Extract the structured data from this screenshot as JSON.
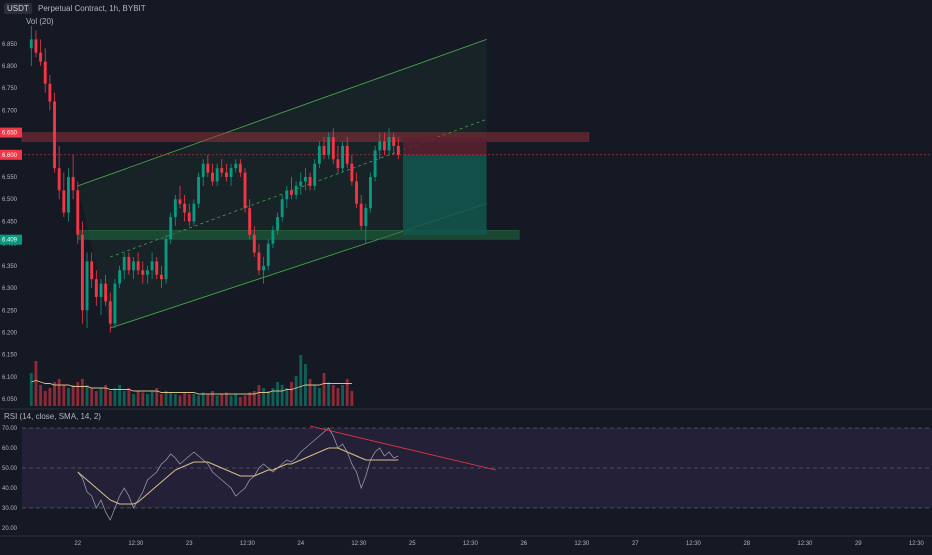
{
  "header": {
    "symbol": "USDT",
    "title": "Perpetual Contract",
    "interval": "1h",
    "exchange": "BYBIT",
    "volume_label": "Vol",
    "volume_ma": "20"
  },
  "rsi_panel": {
    "label": "RSI (14, close, SMA, 14, 2)"
  },
  "price_badges": [
    {
      "label": "6.650",
      "color": "#f23645"
    },
    {
      "label": "6.600",
      "color": "#f23645"
    },
    {
      "label": "6.409",
      "color": "#089981"
    }
  ],
  "colors": {
    "background": "#151924",
    "up": "#089981",
    "down": "#f23645",
    "channel": "#4caf50",
    "resistance_zone": "#a8323c",
    "support_zone": "#1f6b3f",
    "short_target": "#12574f",
    "short_stop": "#5c2030",
    "rsi_band": "#2a2442",
    "rsi_line": "#9598a1",
    "rsi_ma": "#d8c088"
  },
  "chart_data": [
    {
      "type": "candlestick",
      "title": "Perpetual Contract, 1h, BYBIT",
      "y_axis_ticks": [
        "6.850",
        "6.800",
        "6.750",
        "6.700",
        "6.650",
        "6.600",
        "6.550",
        "6.500",
        "6.450",
        "6.400",
        "6.350",
        "6.300",
        "6.250",
        "6.200",
        "6.150",
        "6.100",
        "6.050"
      ],
      "ylim": [
        6.03,
        6.89
      ],
      "x_axis_ticks": [
        "22",
        "12:30",
        "23",
        "12:30",
        "24",
        "12:30",
        "25",
        "12:30",
        "26",
        "12:30",
        "27",
        "12:30",
        "28",
        "12:30",
        "29",
        "12:30"
      ],
      "x_tick_positions_hours": [
        0,
        12.5,
        24,
        36.5,
        48,
        60.5,
        72,
        84.5,
        96,
        108.5,
        120,
        132.5,
        144,
        156.5,
        168,
        180.5
      ],
      "xlim_hours": [
        -12,
        183
      ],
      "candles": [
        [
          -10,
          6.84,
          6.89,
          6.8,
          6.86
        ],
        [
          -9,
          6.86,
          6.88,
          6.82,
          6.83
        ],
        [
          -8,
          6.83,
          6.86,
          6.8,
          6.81
        ],
        [
          -7,
          6.81,
          6.84,
          6.74,
          6.76
        ],
        [
          -6,
          6.76,
          6.78,
          6.7,
          6.72
        ],
        [
          -5,
          6.72,
          6.74,
          6.56,
          6.57
        ],
        [
          -4,
          6.57,
          6.62,
          6.5,
          6.52
        ],
        [
          -3,
          6.52,
          6.56,
          6.46,
          6.47
        ],
        [
          -2,
          6.47,
          6.57,
          6.45,
          6.55
        ],
        [
          -1,
          6.55,
          6.6,
          6.5,
          6.52
        ],
        [
          0,
          6.52,
          6.54,
          6.4,
          6.42
        ],
        [
          1,
          6.42,
          6.45,
          6.22,
          6.25
        ],
        [
          2,
          6.25,
          6.38,
          6.21,
          6.36
        ],
        [
          3,
          6.36,
          6.38,
          6.3,
          6.32
        ],
        [
          4,
          6.32,
          6.34,
          6.26,
          6.28
        ],
        [
          5,
          6.28,
          6.32,
          6.24,
          6.31
        ],
        [
          6,
          6.31,
          6.33,
          6.26,
          6.27
        ],
        [
          7,
          6.27,
          6.29,
          6.2,
          6.22
        ],
        [
          8,
          6.22,
          6.32,
          6.21,
          6.31
        ],
        [
          9,
          6.31,
          6.35,
          6.3,
          6.34
        ],
        [
          10,
          6.34,
          6.38,
          6.32,
          6.37
        ],
        [
          11,
          6.37,
          6.38,
          6.33,
          6.34
        ],
        [
          12,
          6.34,
          6.37,
          6.32,
          6.36
        ],
        [
          13,
          6.36,
          6.38,
          6.33,
          6.34
        ],
        [
          14,
          6.34,
          6.36,
          6.31,
          6.33
        ],
        [
          15,
          6.33,
          6.35,
          6.31,
          6.34
        ],
        [
          16,
          6.34,
          6.38,
          6.32,
          6.36
        ],
        [
          17,
          6.36,
          6.37,
          6.32,
          6.33
        ],
        [
          18,
          6.33,
          6.35,
          6.3,
          6.32
        ],
        [
          19,
          6.32,
          6.42,
          6.31,
          6.41
        ],
        [
          20,
          6.41,
          6.47,
          6.4,
          6.46
        ],
        [
          21,
          6.46,
          6.51,
          6.44,
          6.5
        ],
        [
          22,
          6.5,
          6.53,
          6.48,
          6.49
        ],
        [
          23,
          6.49,
          6.51,
          6.45,
          6.47
        ],
        [
          24,
          6.47,
          6.49,
          6.44,
          6.45
        ],
        [
          25,
          6.45,
          6.5,
          6.44,
          6.49
        ],
        [
          26,
          6.49,
          6.56,
          6.48,
          6.55
        ],
        [
          27,
          6.55,
          6.59,
          6.53,
          6.58
        ],
        [
          28,
          6.58,
          6.6,
          6.55,
          6.56
        ],
        [
          29,
          6.56,
          6.58,
          6.53,
          6.54
        ],
        [
          30,
          6.54,
          6.58,
          6.53,
          6.57
        ],
        [
          31,
          6.57,
          6.59,
          6.55,
          6.56
        ],
        [
          32,
          6.56,
          6.58,
          6.54,
          6.55
        ],
        [
          33,
          6.55,
          6.58,
          6.53,
          6.57
        ],
        [
          34,
          6.57,
          6.59,
          6.56,
          6.58
        ],
        [
          35,
          6.58,
          6.59,
          6.55,
          6.56
        ],
        [
          36,
          6.56,
          6.57,
          6.47,
          6.48
        ],
        [
          37,
          6.48,
          6.5,
          6.41,
          6.42
        ],
        [
          38,
          6.42,
          6.44,
          6.37,
          6.38
        ],
        [
          39,
          6.38,
          6.4,
          6.33,
          6.34
        ],
        [
          40,
          6.34,
          6.37,
          6.31,
          6.35
        ],
        [
          41,
          6.35,
          6.41,
          6.34,
          6.4
        ],
        [
          42,
          6.4,
          6.44,
          6.39,
          6.43
        ],
        [
          43,
          6.43,
          6.47,
          6.42,
          6.46
        ],
        [
          44,
          6.46,
          6.51,
          6.45,
          6.5
        ],
        [
          45,
          6.5,
          6.53,
          6.48,
          6.52
        ],
        [
          46,
          6.52,
          6.55,
          6.5,
          6.51
        ],
        [
          47,
          6.51,
          6.54,
          6.5,
          6.53
        ],
        [
          48,
          6.53,
          6.56,
          6.51,
          6.54
        ],
        [
          49,
          6.54,
          6.57,
          6.52,
          6.55
        ],
        [
          50,
          6.55,
          6.56,
          6.52,
          6.53
        ],
        [
          51,
          6.53,
          6.59,
          6.52,
          6.58
        ],
        [
          52,
          6.58,
          6.63,
          6.57,
          6.62
        ],
        [
          53,
          6.62,
          6.64,
          6.59,
          6.6
        ],
        [
          54,
          6.6,
          6.65,
          6.59,
          6.64
        ],
        [
          55,
          6.64,
          6.66,
          6.58,
          6.59
        ],
        [
          56,
          6.59,
          6.62,
          6.56,
          6.57
        ],
        [
          57,
          6.57,
          6.63,
          6.56,
          6.62
        ],
        [
          58,
          6.62,
          6.64,
          6.57,
          6.58
        ],
        [
          59,
          6.58,
          6.6,
          6.53,
          6.54
        ],
        [
          60,
          6.54,
          6.56,
          6.48,
          6.49
        ],
        [
          61,
          6.49,
          6.51,
          6.43,
          6.44
        ],
        [
          62,
          6.44,
          6.49,
          6.4,
          6.48
        ],
        [
          63,
          6.48,
          6.56,
          6.47,
          6.55
        ],
        [
          64,
          6.55,
          6.62,
          6.54,
          6.61
        ],
        [
          65,
          6.61,
          6.65,
          6.59,
          6.63
        ],
        [
          66,
          6.63,
          6.65,
          6.6,
          6.61
        ],
        [
          67,
          6.61,
          6.66,
          6.6,
          6.64
        ],
        [
          68,
          6.64,
          6.65,
          6.6,
          6.62
        ],
        [
          69,
          6.62,
          6.64,
          6.59,
          6.6
        ]
      ],
      "volume": [
        22,
        30,
        14,
        10,
        12,
        16,
        18,
        14,
        12,
        14,
        16,
        18,
        14,
        12,
        10,
        12,
        14,
        10,
        12,
        14,
        10,
        12,
        8,
        10,
        9,
        8,
        10,
        12,
        8,
        10,
        9,
        8,
        7,
        9,
        8,
        8,
        7,
        9,
        8,
        10,
        7,
        8,
        9,
        7,
        8,
        6,
        7,
        9,
        10,
        14,
        12,
        10,
        12,
        16,
        14,
        12,
        16,
        20,
        34,
        28,
        18,
        14,
        12,
        22,
        16,
        14,
        12,
        14,
        18,
        10
      ],
      "volume_ma": [
        16,
        17,
        16,
        15,
        15,
        14,
        14,
        14,
        14,
        13,
        13,
        13,
        13,
        12,
        12,
        12,
        12,
        11,
        11,
        11,
        11,
        11,
        10,
        10,
        10,
        10,
        10,
        10,
        9,
        9,
        9,
        9,
        9,
        9,
        9,
        9,
        8,
        8,
        8,
        8,
        8,
        8,
        8,
        8,
        8,
        8,
        8,
        8,
        8,
        9,
        9,
        9,
        10,
        10,
        10,
        11,
        11,
        12,
        13,
        14,
        14,
        14,
        14,
        15,
        15,
        15,
        15,
        15,
        15,
        15
      ],
      "channel": {
        "upper": [
          [
            0,
            6.53
          ],
          [
            88,
            6.86
          ]
        ],
        "lower": [
          [
            7,
            6.21
          ],
          [
            88,
            6.49
          ]
        ],
        "mid": [
          [
            7,
            6.37
          ],
          [
            88,
            6.68
          ]
        ]
      },
      "zones": [
        {
          "name": "resistance",
          "from": 6.63,
          "to": 6.65
        },
        {
          "name": "support",
          "from": 6.41,
          "to": 6.43
        }
      ],
      "short_position": {
        "entry": 6.6,
        "stop": 6.64,
        "target": 6.42
      }
    },
    {
      "type": "line",
      "title": "RSI (14, close, SMA, 14, 2)",
      "y_axis_ticks": [
        "70.00",
        "60.00",
        "50.00",
        "40.00",
        "30.00",
        "20.00"
      ],
      "ylim": [
        18,
        73
      ],
      "bands": [
        30,
        50,
        70
      ],
      "series": [
        {
          "values": [
            48,
            45,
            38,
            36,
            30,
            34,
            28,
            24,
            30,
            36,
            40,
            36,
            30,
            34,
            38,
            44,
            46,
            48,
            52,
            54,
            57,
            55,
            52,
            54,
            56,
            58,
            56,
            54,
            52,
            48,
            46,
            44,
            42,
            40,
            36,
            38,
            40,
            44,
            46,
            50,
            52,
            50,
            48,
            50,
            52,
            54,
            53,
            55,
            58,
            60,
            62,
            64,
            66,
            68,
            70,
            66,
            60,
            62,
            58,
            52,
            48,
            40,
            46,
            54,
            58,
            60,
            56,
            58,
            55,
            56
          ]
        },
        {
          "values": [
            48,
            46,
            44,
            42,
            40,
            38,
            36,
            34,
            33,
            32,
            32,
            32,
            32,
            33,
            35,
            37,
            39,
            41,
            43,
            45,
            47,
            49,
            50,
            51,
            52,
            53,
            53,
            53,
            53,
            52,
            51,
            50,
            49,
            48,
            47,
            46,
            46,
            46,
            46,
            47,
            48,
            49,
            49,
            50,
            51,
            52,
            52,
            53,
            54,
            55,
            56,
            57,
            58,
            59,
            60,
            60,
            60,
            59,
            58,
            57,
            56,
            55,
            54,
            54,
            54,
            54,
            54,
            54,
            54,
            54
          ]
        }
      ],
      "trendline": [
        [
          50,
          71
        ],
        [
          90,
          49
        ]
      ]
    }
  ]
}
